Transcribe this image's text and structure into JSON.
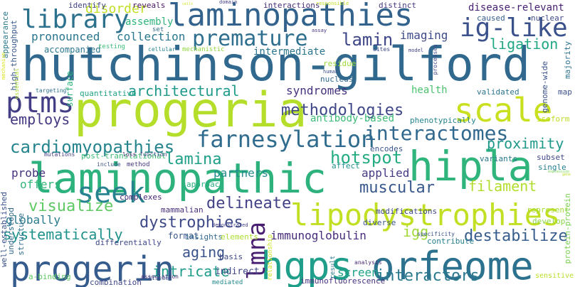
{
  "words": [
    {
      "text": "hutchinson-gilford",
      "color": "#31688e",
      "vertical": false,
      "mono": true
    },
    {
      "text": "progeria",
      "color": "#b5de2b",
      "vertical": false,
      "mono": true
    },
    {
      "text": "laminopathic",
      "color": "#2db27d",
      "vertical": false,
      "mono": true
    },
    {
      "text": "laminopathies",
      "color": "#33638d",
      "vertical": false,
      "mono": true
    },
    {
      "text": "hgps",
      "color": "#1f9e89",
      "vertical": false,
      "mono": true
    },
    {
      "text": "orfeome",
      "color": "#2c728e",
      "vertical": false,
      "mono": true
    },
    {
      "text": "progerin",
      "color": "#365c8d",
      "vertical": false,
      "mono": true
    },
    {
      "text": "hipla",
      "color": "#2fb47c",
      "vertical": false,
      "mono": true
    },
    {
      "text": "ig-like",
      "color": "#3b518b",
      "vertical": false,
      "mono": true
    },
    {
      "text": "scale",
      "color": "#c8e020",
      "vertical": false,
      "mono": true
    },
    {
      "text": "lipodystrophies",
      "color": "#c2df23",
      "vertical": false,
      "mono": true
    },
    {
      "text": "farnesylation",
      "color": "#2f6c8e",
      "vertical": false,
      "mono": true
    },
    {
      "text": "interactomes",
      "color": "#31688e",
      "vertical": false,
      "mono": true
    },
    {
      "text": "ptms",
      "color": "#433e85",
      "vertical": false,
      "mono": true
    },
    {
      "text": "seek",
      "color": "#26828e",
      "vertical": false,
      "mono": true
    },
    {
      "text": "lmna",
      "color": "#481f70",
      "vertical": true,
      "mono": true
    },
    {
      "text": "library",
      "color": "#2c718e",
      "vertical": false,
      "mono": true
    },
    {
      "text": "premature",
      "color": "#2e6e8e",
      "vertical": false,
      "mono": true
    },
    {
      "text": "cardiomyopathies",
      "color": "#25848e",
      "vertical": false,
      "mono": true
    },
    {
      "text": "methodologies",
      "color": "#3f4788",
      "vertical": false,
      "mono": true
    },
    {
      "text": "hotspot",
      "color": "#25ac82",
      "vertical": false,
      "mono": true
    },
    {
      "text": "lamina",
      "color": "#1fa088",
      "vertical": false,
      "mono": true
    },
    {
      "text": "visualize",
      "color": "#5ec962",
      "vertical": false,
      "mono": true
    },
    {
      "text": "dystrophies",
      "color": "#3e4a89",
      "vertical": false,
      "mono": true
    },
    {
      "text": "delineate",
      "color": "#424086",
      "vertical": false,
      "mono": true
    },
    {
      "text": "muscular",
      "color": "#38588c",
      "vertical": false,
      "mono": true
    },
    {
      "text": "systematically",
      "color": "#20928c",
      "vertical": false,
      "mono": true
    },
    {
      "text": "destabilize",
      "color": "#365d8d",
      "vertical": false,
      "mono": true
    },
    {
      "text": "interactors",
      "color": "#2a788e",
      "vertical": false,
      "mono": true
    },
    {
      "text": "intricate",
      "color": "#1e9c89",
      "vertical": false,
      "mono": true
    },
    {
      "text": "architectural",
      "color": "#1f9a8a",
      "vertical": false,
      "mono": true
    },
    {
      "text": "lamin",
      "color": "#3f4788",
      "vertical": false,
      "mono": true
    },
    {
      "text": "ligation",
      "color": "#22a785",
      "vertical": false,
      "mono": true
    },
    {
      "text": "filament",
      "color": "#b2dd2d",
      "vertical": false,
      "mono": true
    },
    {
      "text": "proximity",
      "color": "#1f998a",
      "vertical": false,
      "mono": true
    },
    {
      "text": "employs",
      "color": "#453781",
      "vertical": false,
      "mono": true
    },
    {
      "text": "aging",
      "color": "#3a538b",
      "vertical": false,
      "mono": true
    },
    {
      "text": "igg",
      "color": "#a0da39",
      "vertical": false,
      "mono": true
    },
    {
      "text": "screen",
      "color": "#1fa287",
      "vertical": false,
      "mono": true
    },
    {
      "text": "disorder",
      "color": "#c0df25",
      "vertical": false,
      "mono": true
    },
    {
      "text": "pronounced",
      "color": "#2a768e",
      "vertical": false,
      "mono": true
    },
    {
      "text": "collection",
      "color": "#2a778e",
      "vertical": false,
      "mono": true
    },
    {
      "text": "syndromes",
      "color": "#46327e",
      "vertical": false,
      "mono": true
    },
    {
      "text": "imaging",
      "color": "#3e4989",
      "vertical": false,
      "mono": true
    },
    {
      "text": "partners",
      "color": "#238a8d",
      "vertical": false,
      "mono": true
    },
    {
      "text": "globally",
      "color": "#297a8e",
      "vertical": false,
      "mono": true
    },
    {
      "text": "immunoglobulin",
      "color": "#472d7b",
      "vertical": false,
      "mono": true
    },
    {
      "text": "applied",
      "color": "#443983",
      "vertical": false,
      "mono": true
    },
    {
      "text": "offers",
      "color": "#32b67a",
      "vertical": false,
      "mono": true
    },
    {
      "text": "probe",
      "color": "#46327e",
      "vertical": false,
      "mono": true
    },
    {
      "text": "intermediate",
      "color": "#2b758e",
      "vertical": false,
      "mono": true
    },
    {
      "text": "disease-relevant",
      "color": "#482173",
      "vertical": false,
      "mono": true
    },
    {
      "text": "antibody-based",
      "color": "#3bbb75",
      "vertical": false,
      "mono": true
    },
    {
      "text": "health",
      "color": "#4ac16d",
      "vertical": false,
      "mono": true
    },
    {
      "text": "assembly",
      "color": "#2fb47c",
      "vertical": false,
      "mono": true
    },
    {
      "text": "accompanied",
      "color": "#2a768e",
      "vertical": false,
      "mono": true
    },
    {
      "text": "format",
      "color": "#39568c",
      "vertical": false,
      "mono": true
    },
    {
      "text": "identify",
      "color": "#404588",
      "vertical": false,
      "mono": true
    },
    {
      "text": "reveals",
      "color": "#481467",
      "vertical": false,
      "mono": true
    },
    {
      "text": "interactions",
      "color": "#472c7a",
      "vertical": false,
      "mono": true
    },
    {
      "text": "distinct",
      "color": "#453882",
      "vertical": false,
      "mono": true
    },
    {
      "text": "nuclear",
      "color": "#3e4a89",
      "vertical": false,
      "mono": true
    },
    {
      "text": "caused",
      "color": "#355f8d",
      "vertical": false,
      "mono": true
    },
    {
      "text": "majority",
      "color": "#2c718e",
      "vertical": true,
      "mono": true
    },
    {
      "text": "genome-wide",
      "color": "#3a538b",
      "vertical": true,
      "mono": true
    },
    {
      "text": "high-throughput",
      "color": "#38598c",
      "vertical": true,
      "mono": true
    },
    {
      "text": "appearance",
      "color": "#2a788e",
      "vertical": true,
      "mono": true
    },
    {
      "text": "surface",
      "color": "#2fb47c",
      "vertical": true,
      "mono": true
    },
    {
      "text": "residue",
      "color": "#9dd93b",
      "vertical": false,
      "mono": true
    },
    {
      "text": "nucleus",
      "color": "#31688e",
      "vertical": false,
      "mono": true
    },
    {
      "text": "quantitative",
      "color": "#20a386",
      "vertical": false,
      "mono": true
    },
    {
      "text": "validated",
      "color": "#2b748e",
      "vertical": false,
      "mono": true
    },
    {
      "text": "map",
      "color": "#3b518b",
      "vertical": false,
      "mono": true
    },
    {
      "text": "isoform",
      "color": "#bddf26",
      "vertical": false,
      "mono": true
    },
    {
      "text": "phenotypically",
      "color": "#25838e",
      "vertical": false,
      "mono": true
    },
    {
      "text": "post-translational",
      "color": "#3dbc74",
      "vertical": false,
      "mono": true
    },
    {
      "text": "encodes",
      "color": "#39568c",
      "vertical": false,
      "mono": true
    },
    {
      "text": "variants",
      "color": "#2a768e",
      "vertical": false,
      "mono": true
    },
    {
      "text": "subset",
      "color": "#404688",
      "vertical": false,
      "mono": true
    },
    {
      "text": "single",
      "color": "#277f8e",
      "vertical": false,
      "mono": true
    },
    {
      "text": "affect",
      "color": "#20928c",
      "vertical": false,
      "mono": true
    },
    {
      "text": "approach",
      "color": "#29af7f",
      "vertical": false,
      "mono": true
    },
    {
      "text": "mammalian",
      "color": "#472d7b",
      "vertical": false,
      "mono": true
    },
    {
      "text": "complexes",
      "color": "#482677",
      "vertical": false,
      "mono": true
    },
    {
      "text": "modifications",
      "color": "#3e4989",
      "vertical": false,
      "mono": true
    },
    {
      "text": "diverse",
      "color": "#3a548c",
      "vertical": false,
      "mono": true
    },
    {
      "text": "represent",
      "color": "#a5db36",
      "vertical": false,
      "mono": true
    },
    {
      "text": "develop",
      "color": "#8bd646",
      "vertical": false,
      "mono": true
    },
    {
      "text": "protein-protein",
      "color": "#7ad151",
      "vertical": true,
      "mono": true
    },
    {
      "text": "contribute",
      "color": "#277f8e",
      "vertical": false,
      "mono": true
    },
    {
      "text": "insights",
      "color": "#31688e",
      "vertical": false,
      "mono": true
    },
    {
      "text": "elements",
      "color": "#addc30",
      "vertical": false,
      "mono": true
    },
    {
      "text": "differentially",
      "color": "#3f4788",
      "vertical": false,
      "mono": true
    },
    {
      "text": "structure",
      "color": "#2c718e",
      "vertical": true,
      "mono": true
    },
    {
      "text": "understood",
      "color": "#31688e",
      "vertical": true,
      "mono": true
    },
    {
      "text": "well-established",
      "color": "#3b528b",
      "vertical": true,
      "mono": true
    },
    {
      "text": "a-binding",
      "color": "#5ec962",
      "vertical": false,
      "mono": true
    },
    {
      "text": "combination",
      "color": "#3f4788",
      "vertical": false,
      "mono": true
    },
    {
      "text": "immunofluorescence",
      "color": "#46337e",
      "vertical": false,
      "mono": true
    },
    {
      "text": "indirect",
      "color": "#404588",
      "vertical": false,
      "mono": true
    },
    {
      "text": "basis",
      "color": "#3e4989",
      "vertical": false,
      "mono": true
    },
    {
      "text": "mediated",
      "color": "#23898e",
      "vertical": false,
      "mono": true
    },
    {
      "text": "relationship",
      "color": "#cde11d",
      "vertical": true,
      "mono": true
    },
    {
      "text": "result",
      "color": "#2a768e",
      "vertical": true,
      "mono": true
    },
    {
      "text": "analysis",
      "color": "#482979",
      "vertical": false,
      "mono": true
    },
    {
      "text": "specificity",
      "color": "#3b528b",
      "vertical": false,
      "mono": true
    },
    {
      "text": "sensitive",
      "color": "#b8de29",
      "vertical": false,
      "mono": true
    },
    {
      "text": "method",
      "color": "#443a83",
      "vertical": false,
      "mono": true
    },
    {
      "text": "function",
      "color": "#404588",
      "vertical": false,
      "mono": true
    },
    {
      "text": "loss",
      "color": "#481c6e",
      "vertical": false,
      "mono": true
    },
    {
      "text": "include",
      "color": "#3b528b",
      "vertical": false,
      "mono": true
    },
    {
      "text": "association",
      "color": "#482979",
      "vertical": false,
      "mono": true
    },
    {
      "text": "demonstrated",
      "color": "#424086",
      "vertical": false,
      "mono": true
    },
    {
      "text": "targeting",
      "color": "#2d708e",
      "vertical": false,
      "mono": true
    },
    {
      "text": "tissue",
      "color": "#3a538b",
      "vertical": false,
      "mono": true
    },
    {
      "text": "mutations",
      "color": "#433e85",
      "vertical": false,
      "mono": true
    },
    {
      "text": "essential",
      "color": "#addc30",
      "vertical": true,
      "mono": true
    },
    {
      "text": "mechanism",
      "color": "#d8e219",
      "vertical": true,
      "mono": true
    },
    {
      "text": "mechanistic",
      "color": "#93d741",
      "vertical": false,
      "mono": true
    },
    {
      "text": "cellular",
      "color": "#26828e",
      "vertical": false,
      "mono": true
    },
    {
      "text": "testing",
      "color": "#3bbb75",
      "vertical": false,
      "mono": true
    },
    {
      "text": "set",
      "color": "#31688e",
      "vertical": false,
      "mono": true
    },
    {
      "text": "sites",
      "color": "#3e4a89",
      "vertical": false,
      "mono": true
    },
    {
      "text": "model",
      "color": "#404688",
      "vertical": false,
      "mono": true
    },
    {
      "text": "human",
      "color": "#3b528b",
      "vertical": false,
      "mono": true
    },
    {
      "text": "assay",
      "color": "#46317e",
      "vertical": false,
      "mono": true
    },
    {
      "text": "processes",
      "color": "#3e4989",
      "vertical": true,
      "mono": true
    },
    {
      "text": "domain",
      "color": "#424086",
      "vertical": false,
      "mono": true
    },
    {
      "text": "responsible",
      "color": "#c2df23",
      "vertical": false,
      "mono": true
    },
    {
      "text": "cells",
      "color": "#d2e21b",
      "vertical": false,
      "mono": true
    },
    {
      "text": "expression",
      "color": "#7ad151",
      "vertical": false,
      "mono": true
    },
    {
      "text": "gene",
      "color": "#bddf26",
      "vertical": false,
      "mono": true
    }
  ]
}
